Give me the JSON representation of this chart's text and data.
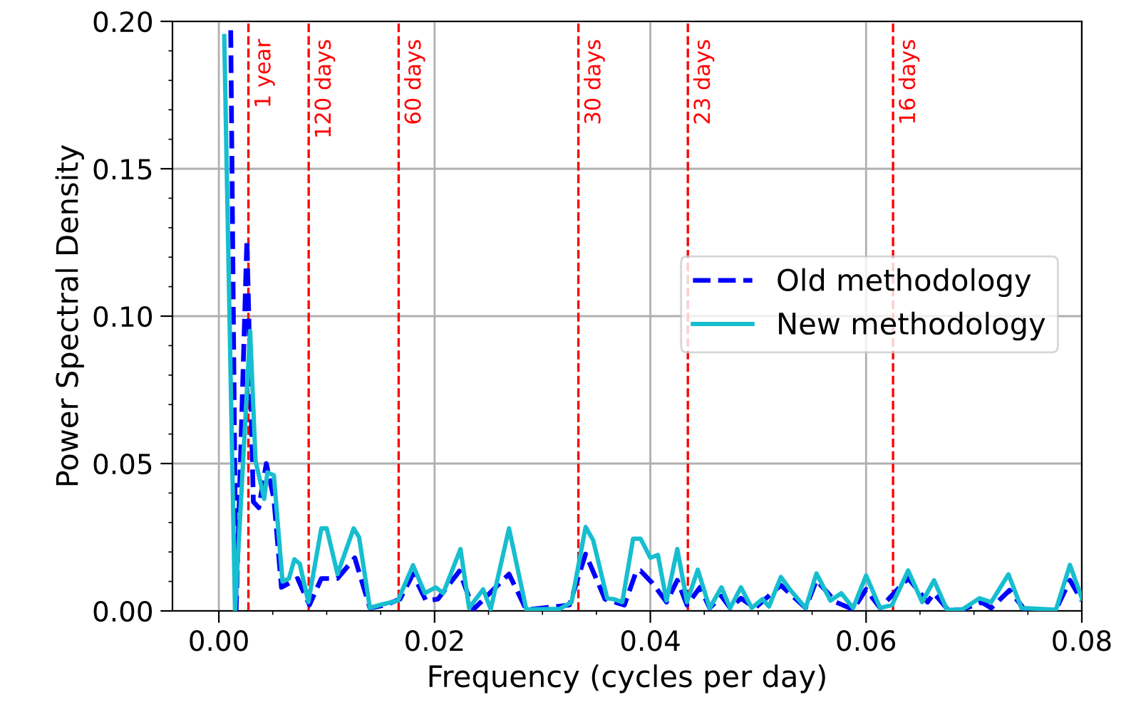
{
  "chart_data": {
    "type": "line",
    "xlabel": "Frequency (cycles per day)",
    "ylabel": "Power Spectral Density",
    "xlim": [
      -0.0043,
      0.08
    ],
    "ylim": [
      0,
      0.2
    ],
    "xticks": [
      {
        "value": 0,
        "label": "0.00"
      },
      0.02,
      0.04,
      0.06,
      0.08
    ],
    "yticks": [
      {
        "value": 0,
        "label": "0.00"
      },
      0.05,
      {
        "value": 0.1,
        "label": "0.10"
      },
      0.15,
      {
        "value": 0.2,
        "label": "0.20"
      }
    ],
    "grid": true,
    "legend": "right",
    "series": [
      {
        "name": "Old methodology",
        "color": "#0000ff",
        "line_style": "dashed",
        "x": [
          0.0011,
          0.0016,
          0.0026,
          0.0032,
          0.0037,
          0.0044,
          0.0051,
          0.0058,
          0.0073,
          0.0084,
          0.0095,
          0.011,
          0.0126,
          0.014,
          0.0154,
          0.0168,
          0.018,
          0.0192,
          0.0203,
          0.0223,
          0.0236,
          0.0269,
          0.0285,
          0.0325,
          0.034,
          0.0358,
          0.0376,
          0.0387,
          0.0391,
          0.0402,
          0.0415,
          0.0425,
          0.0434,
          0.0446,
          0.0455,
          0.0466,
          0.0474,
          0.0484,
          0.0497,
          0.0521,
          0.0544,
          0.0554,
          0.0572,
          0.0588,
          0.06,
          0.0613,
          0.0639,
          0.0657,
          0.0663,
          0.0676,
          0.0689,
          0.0707,
          0.0716,
          0.0733,
          0.0747,
          0.0776,
          0.0789,
          0.08
        ],
        "values": [
          0.197,
          0,
          0.126,
          0.037,
          0.035,
          0.05,
          0.038,
          0.008,
          0.011,
          0.002,
          0.011,
          0.011,
          0.018,
          0.001,
          0.002,
          0.004,
          0.0125,
          0.0035,
          0.004,
          0.0135,
          0.0005,
          0.0125,
          0.0004,
          0.002,
          0.0193,
          0.004,
          0.002,
          0.0135,
          0.0136,
          0.0094,
          0.003,
          0.0104,
          0.002,
          0.008,
          0.001,
          0.005,
          0.001,
          0.0043,
          0.001,
          0.0087,
          0.001,
          0.0104,
          0.003,
          0.0005,
          0.0073,
          0.001,
          0.0111,
          0.003,
          0.006,
          0.0004,
          0.0004,
          0.003,
          0.001,
          0.007,
          0.0004,
          0.0004,
          0.0104,
          0.0035
        ]
      },
      {
        "name": "New methodology",
        "color": "#17becf",
        "line_style": "solid",
        "x": [
          0.0005,
          0.0015,
          0.0029,
          0.0034,
          0.0042,
          0.0045,
          0.0051,
          0.0059,
          0.0065,
          0.007,
          0.0075,
          0.0083,
          0.0095,
          0.01,
          0.011,
          0.0125,
          0.013,
          0.014,
          0.0149,
          0.0166,
          0.018,
          0.0191,
          0.0201,
          0.0208,
          0.0224,
          0.0232,
          0.0245,
          0.0252,
          0.0269,
          0.0285,
          0.0316,
          0.0327,
          0.034,
          0.0347,
          0.036,
          0.0366,
          0.0374,
          0.0384,
          0.0391,
          0.04,
          0.0407,
          0.0415,
          0.0425,
          0.0434,
          0.0444,
          0.0455,
          0.0466,
          0.0474,
          0.0484,
          0.0494,
          0.0504,
          0.051,
          0.0521,
          0.053,
          0.0544,
          0.0554,
          0.0567,
          0.0577,
          0.0588,
          0.06,
          0.0613,
          0.0624,
          0.0639,
          0.0652,
          0.0663,
          0.0675,
          0.0689,
          0.0705,
          0.0716,
          0.0732,
          0.0744,
          0.0776,
          0.0789,
          0.08
        ],
        "values": [
          0.195,
          0,
          0.095,
          0.051,
          0.038,
          0.047,
          0.046,
          0.01,
          0.011,
          0.0175,
          0.016,
          0.003,
          0.028,
          0.028,
          0.0125,
          0.028,
          0.025,
          0.001,
          0.002,
          0.0035,
          0.0155,
          0.006,
          0.008,
          0.006,
          0.021,
          0.001,
          0.0073,
          0.0006,
          0.028,
          0.0005,
          0.0007,
          0.003,
          0.0285,
          0.024,
          0.0043,
          0.004,
          0.003,
          0.0245,
          0.0245,
          0.018,
          0.019,
          0.0035,
          0.021,
          0.003,
          0.014,
          0.001,
          0.008,
          0.001,
          0.008,
          0.001,
          0.004,
          0.0015,
          0.0115,
          0.007,
          0.001,
          0.0127,
          0.0035,
          0.006,
          0.001,
          0.012,
          0.001,
          0.002,
          0.0137,
          0.003,
          0.0104,
          0.0004,
          0.0004,
          0.0043,
          0.003,
          0.0124,
          0.001,
          0.0004,
          0.0156,
          0.0043
        ]
      }
    ],
    "ref_lines": [
      {
        "axis": "x",
        "value": 0.00274,
        "label": "1 year",
        "color": "#ff0000",
        "line_style": "dashed"
      },
      {
        "axis": "x",
        "value": 0.00833,
        "label": "120 days",
        "color": "#ff0000",
        "line_style": "dashed"
      },
      {
        "axis": "x",
        "value": 0.01667,
        "label": "60 days",
        "color": "#ff0000",
        "line_style": "dashed"
      },
      {
        "axis": "x",
        "value": 0.03333,
        "label": "30 days",
        "color": "#ff0000",
        "line_style": "dashed"
      },
      {
        "axis": "x",
        "value": 0.04348,
        "label": "23 days",
        "color": "#ff0000",
        "line_style": "dashed"
      },
      {
        "axis": "x",
        "value": 0.0625,
        "label": "16 days",
        "color": "#ff0000",
        "line_style": "dashed"
      }
    ]
  }
}
